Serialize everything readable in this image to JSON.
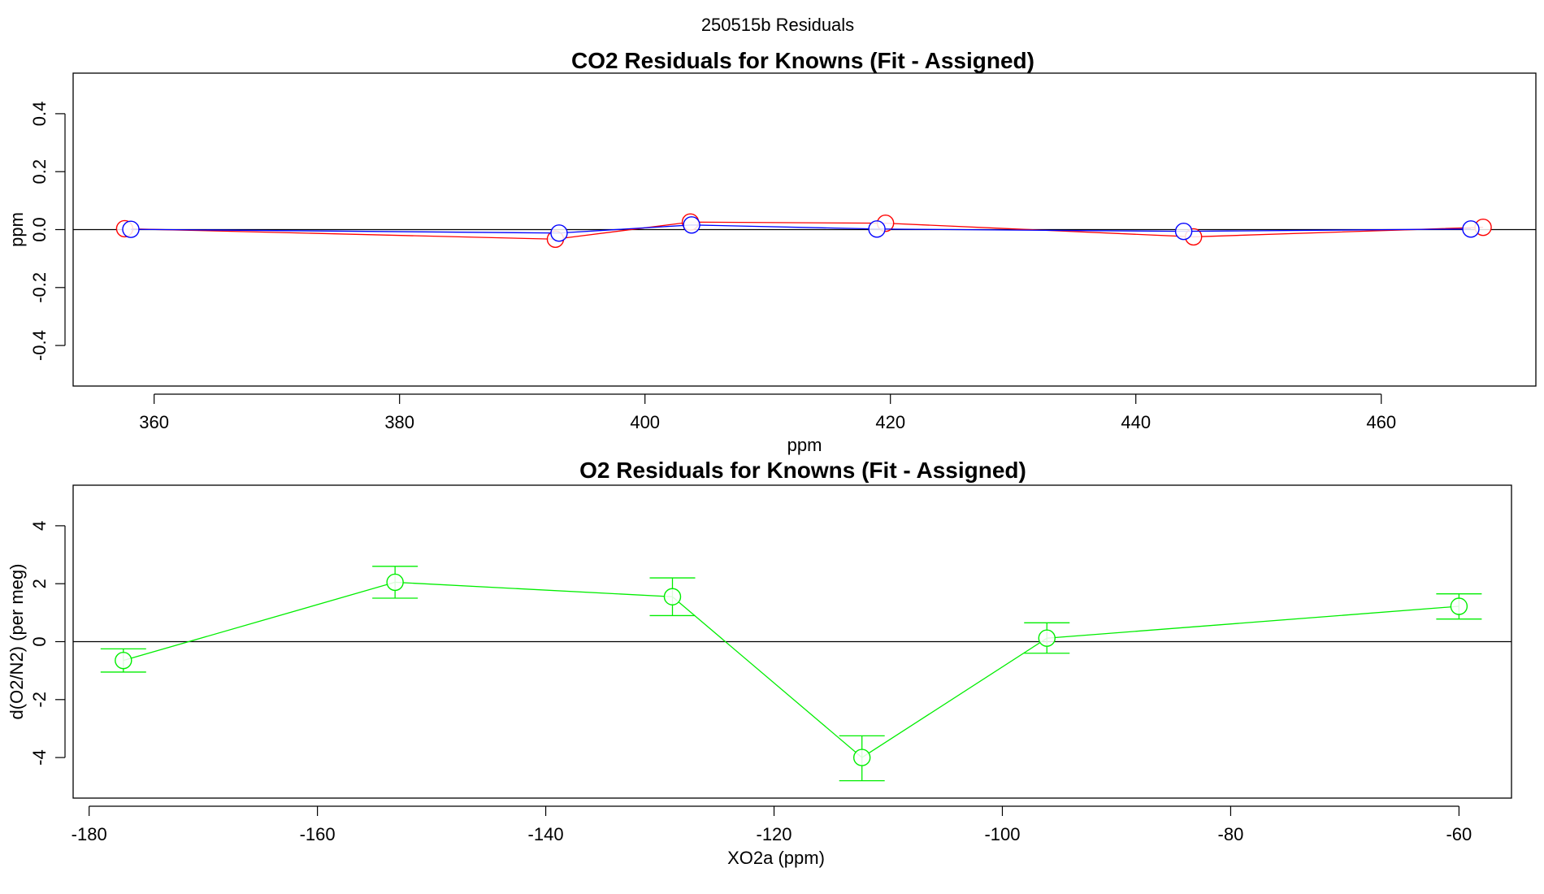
{
  "figure": {
    "suptitle": "250515b  Residuals"
  },
  "chart_data": [
    {
      "type": "line",
      "title": "CO2 Residuals for Knowns (Fit - Assigned)",
      "xlabel": "ppm",
      "ylabel": "ppm",
      "xlim": [
        353.4,
        472.6
      ],
      "ylim": [
        -0.54,
        0.54
      ],
      "xticks": [
        "360",
        "380",
        "400",
        "420",
        "440",
        "460"
      ],
      "xtick_values": [
        360,
        380,
        400,
        420,
        440,
        460
      ],
      "yticks": [
        "-0.4",
        "-0.2",
        "0.0",
        "0.2",
        "0.4"
      ],
      "ytick_values": [
        -0.4,
        -0.2,
        0.0,
        0.2,
        0.4
      ],
      "reference_line": 0,
      "series": [
        {
          "color": "#ff0000",
          "x": [
            357.6,
            392.7,
            403.7,
            419.6,
            444.7,
            468.3
          ],
          "y": [
            0.003,
            -0.033,
            0.026,
            0.022,
            -0.025,
            0.008
          ]
        },
        {
          "color": "#0000ff",
          "x": [
            358.1,
            393.0,
            403.8,
            418.9,
            443.9,
            467.3
          ],
          "y": [
            0.001,
            -0.012,
            0.016,
            0.002,
            -0.006,
            0.002
          ]
        }
      ]
    },
    {
      "type": "line",
      "title": "O2 Residuals for Knowns (Fit - Assigned)",
      "xlabel": "XO2a (ppm)",
      "ylabel": "d(O2/N2) (per meg)",
      "xlim": [
        -181.4,
        -55.4
      ],
      "ylim": [
        -5.4,
        5.4
      ],
      "xticks": [
        "-180",
        "-160",
        "-140",
        "-120",
        "-100",
        "-80",
        "-60"
      ],
      "xtick_values": [
        -180,
        -160,
        -140,
        -120,
        -100,
        -80,
        -60
      ],
      "yticks": [
        "-4",
        "-2",
        "0",
        "2",
        "4"
      ],
      "ytick_values": [
        -4,
        -2,
        0,
        2,
        4
      ],
      "reference_line": 0,
      "series": [
        {
          "color": "#00ee00",
          "x": [
            -177.0,
            -153.2,
            -128.9,
            -112.3,
            -96.1,
            -60.0
          ],
          "y": [
            -0.65,
            2.05,
            1.55,
            -4.0,
            0.12,
            1.22
          ],
          "err_low": [
            -1.05,
            1.5,
            0.9,
            -4.8,
            -0.4,
            0.78
          ],
          "err_high": [
            -0.25,
            2.6,
            2.2,
            -3.25,
            0.65,
            1.65
          ]
        }
      ]
    }
  ]
}
